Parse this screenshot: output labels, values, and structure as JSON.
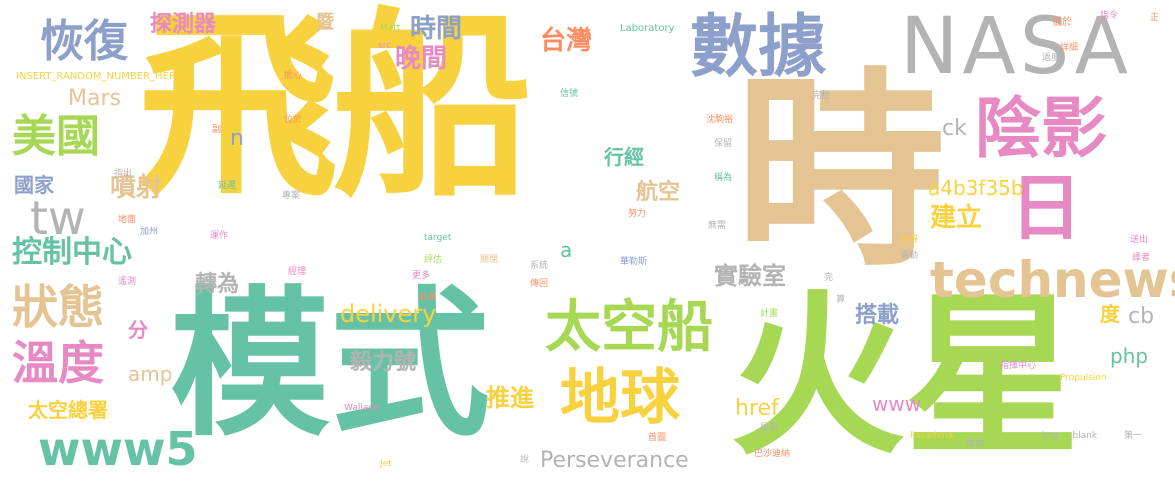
{
  "colors": {
    "yellow": "#f7d23e",
    "teal": "#66c2a5",
    "green": "#a6d854",
    "tan": "#e5c494",
    "pink": "#e78ac3",
    "blue": "#8da0cb",
    "orange": "#fc8d62",
    "gray": "#b3b3b3"
  },
  "words": [
    "飛船",
    "時",
    "模式",
    "火星",
    "數據",
    "NASA",
    "陰影",
    "日",
    "technews",
    "太空船",
    "地球",
    "恢復",
    "美國",
    "tw",
    "狀態",
    "溫度",
    "www5",
    "控制中心",
    "噴射",
    "國家",
    "探測器",
    "時間",
    "晚間",
    "台灣",
    "暨",
    "Mars",
    "n",
    "行經",
    "航空",
    "建立",
    "a4b3f35b",
    "ck",
    "實驗室",
    "轉為",
    "搭載",
    "delivery",
    "毅力號",
    "推進",
    "Perseverance",
    "href",
    "www",
    "php",
    "度",
    "cb",
    "分",
    "amp",
    "太空總署",
    "a",
    "INSERT_RANDOM_NUMBER_HERE",
    "Matt",
    "Laboratory",
    "src",
    "低於",
    "指令",
    "正",
    "詳細",
    "過度",
    "信號",
    "擔心",
    "位於",
    "副",
    "指出",
    "延遲",
    "專案",
    "地面",
    "加州",
    "運作",
    "經理",
    "遙測",
    "更多",
    "評估",
    "關閉",
    "系統",
    "華勒斯",
    "傳回",
    "來源",
    "target",
    "努力",
    "無需",
    "完整",
    "沈駒裕",
    "保留",
    "稱為",
    "好得",
    "送出",
    "通勤",
    "譯者",
    "計畫",
    "算",
    "預期",
    "指揮中心",
    "Propulsion",
    "Wallace",
    "首圖",
    "局部",
    "Pasadena",
    "img",
    "_blank",
    "第一",
    "巴沙迪納",
    "離開",
    "說",
    "Jet",
    "完"
  ]
}
